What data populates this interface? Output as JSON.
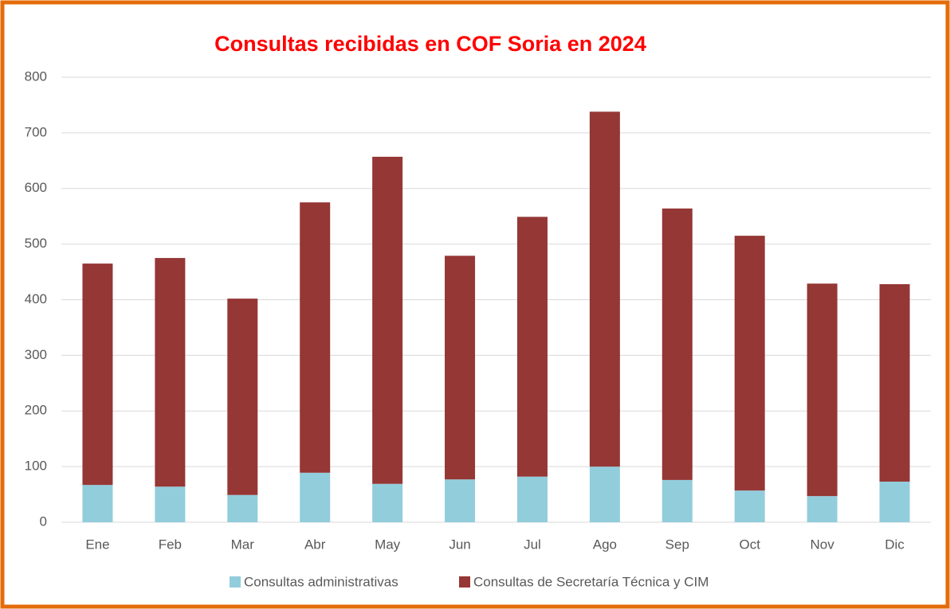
{
  "chart_data": {
    "type": "stacked_bar",
    "title": "Consultas recibidas en COF Soria en 2024",
    "categories": [
      "Ene",
      "Feb",
      "Mar",
      "Abr",
      "May",
      "Jun",
      "Jul",
      "Ago",
      "Sep",
      "Oct",
      "Nov",
      "Dic"
    ],
    "series": [
      {
        "name": "Consultas administrativas",
        "color": "#92cddc",
        "values": [
          67,
          64,
          49,
          89,
          69,
          77,
          82,
          100,
          76,
          57,
          47,
          73
        ]
      },
      {
        "name": "Consultas de Secretaría Técnica y CIM",
        "color": "#953735",
        "values": [
          398,
          411,
          353,
          486,
          588,
          402,
          467,
          638,
          488,
          458,
          382,
          355
        ]
      }
    ],
    "ylim": [
      0,
      800
    ],
    "yticks": [
      0,
      100,
      200,
      300,
      400,
      500,
      600,
      700,
      800
    ],
    "grid": true,
    "legend": "bottom"
  }
}
